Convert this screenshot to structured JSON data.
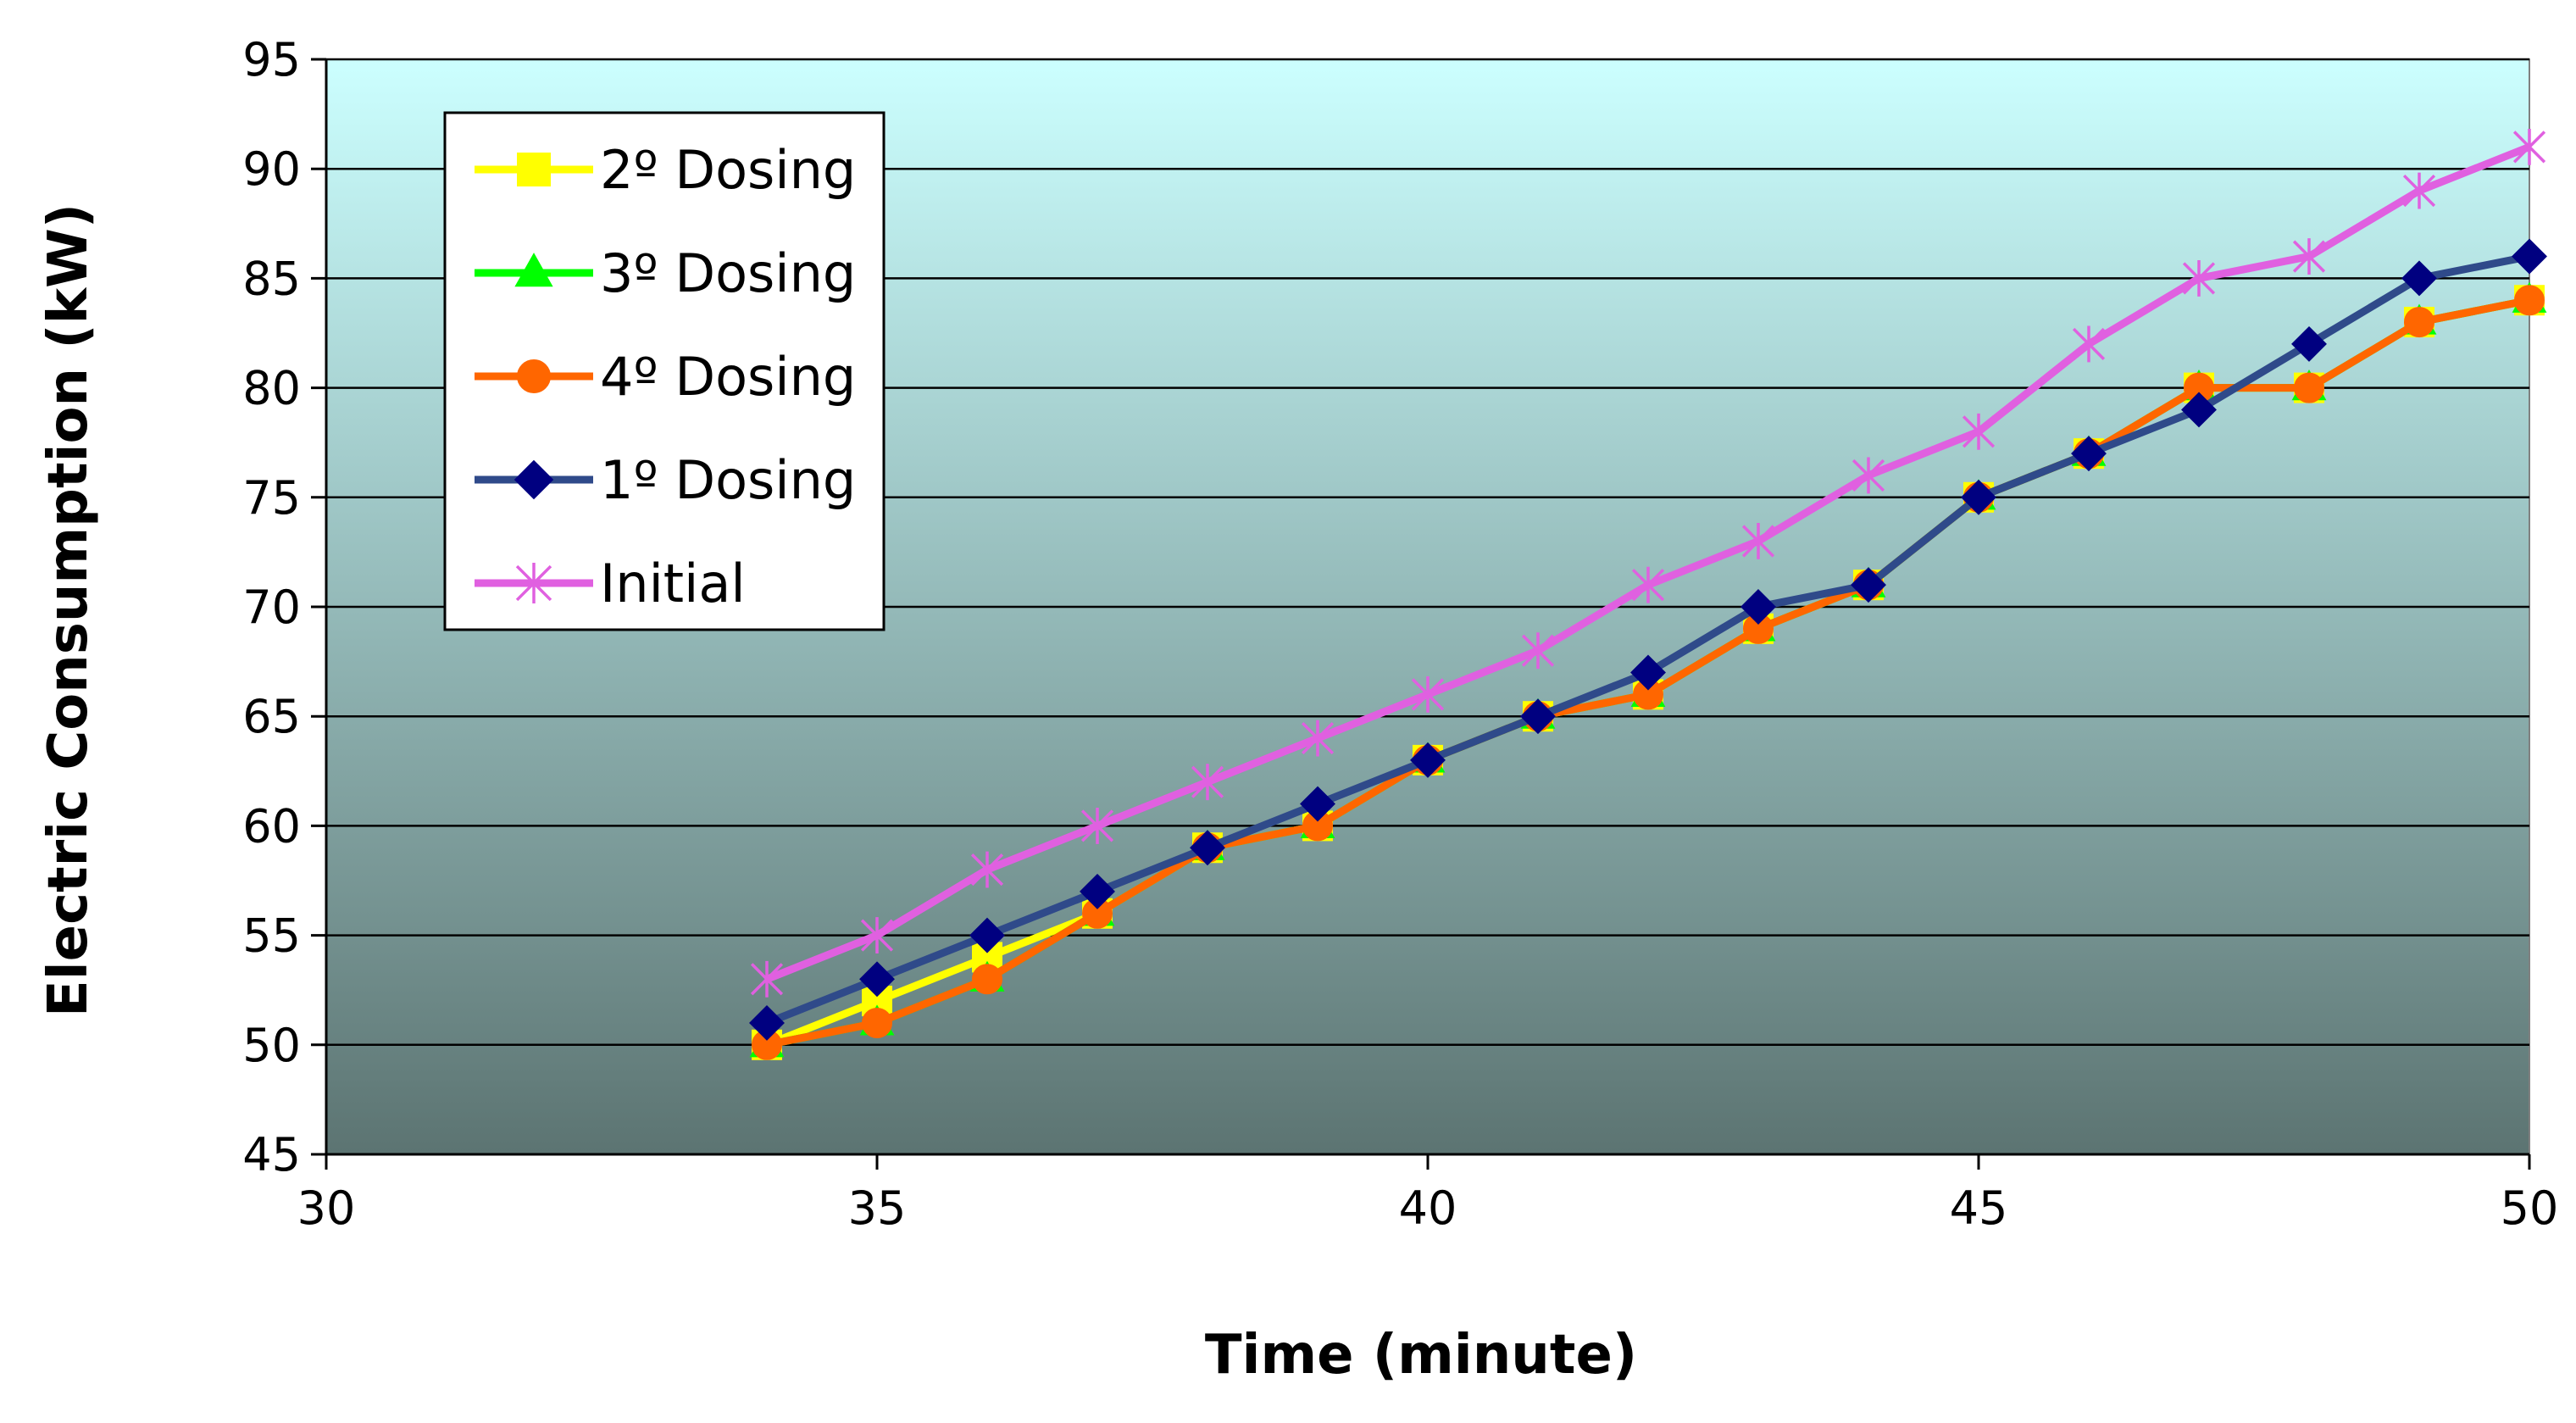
{
  "chart_data": {
    "type": "line",
    "title": "",
    "xlabel": "Time (minute)",
    "ylabel": "Electric Consumption (kW)",
    "xlim": [
      30,
      50
    ],
    "ylim": [
      45,
      95
    ],
    "x_ticks": [
      "30",
      "35",
      "40",
      "45",
      "50"
    ],
    "y_ticks": [
      "45",
      "50",
      "55",
      "60",
      "65",
      "70",
      "75",
      "80",
      "85",
      "90",
      "95"
    ],
    "grid": "horizontal",
    "legend_position": "top-left",
    "x": [
      34,
      35,
      36,
      37,
      38,
      39,
      40,
      41,
      42,
      43,
      44,
      45,
      46,
      47,
      48,
      49,
      50
    ],
    "series": [
      {
        "name": "2º Dosing",
        "marker": "square",
        "color": "#FFFF00",
        "values": [
          50,
          52,
          54,
          56,
          59,
          60,
          63,
          65,
          66,
          69,
          71,
          75,
          77,
          80,
          80,
          83,
          84
        ]
      },
      {
        "name": "3º Dosing",
        "marker": "triangle",
        "color": "#00FF00",
        "values": [
          50,
          51,
          53,
          56,
          59,
          60,
          63,
          65,
          66,
          69,
          71,
          75,
          77,
          80,
          80,
          83,
          84
        ]
      },
      {
        "name": "4º Dosing",
        "marker": "circle",
        "color": "#FF6600",
        "values": [
          50,
          51,
          53,
          56,
          59,
          60,
          63,
          65,
          66,
          69,
          71,
          75,
          77,
          80,
          80,
          83,
          84
        ]
      },
      {
        "name": "1º Dosing",
        "marker": "diamond",
        "color": "#2F4A8A",
        "marker_color": "#000080",
        "values": [
          51,
          53,
          55,
          57,
          59,
          61,
          63,
          65,
          67,
          70,
          71,
          75,
          77,
          79,
          82,
          85,
          86
        ]
      },
      {
        "name": "Initial",
        "marker": "asterisk",
        "color": "#E060E0",
        "values": [
          53,
          55,
          58,
          60,
          62,
          64,
          66,
          68,
          71,
          73,
          76,
          78,
          82,
          85,
          86,
          89,
          91
        ]
      }
    ],
    "plot_background": {
      "top_color": "#CCFFFF",
      "bottom_color": "#5C7472"
    }
  }
}
